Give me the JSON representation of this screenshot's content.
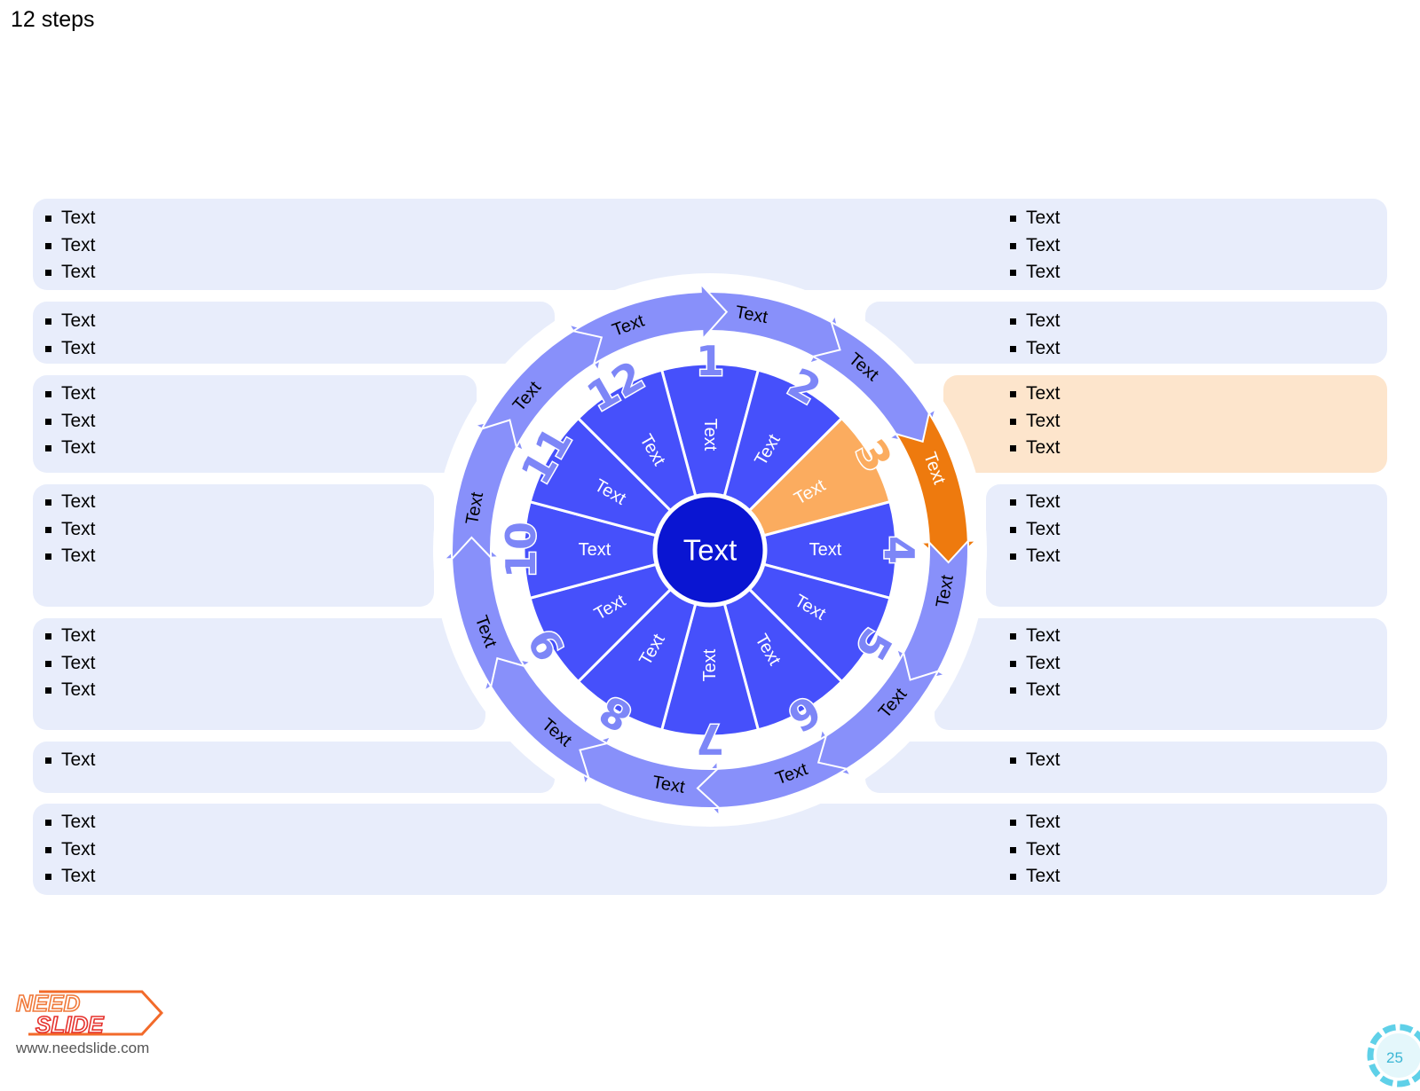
{
  "title": "12 steps",
  "center_label": "Text",
  "colors": {
    "panel": "#e8edfb",
    "panel_highlight": "#fde5cc",
    "segment": "#4650fb",
    "segment_highlight": "#fbac5f",
    "ring_arrow": "#8890fa",
    "ring_arrow_highlight": "#ee7a0e",
    "center": "#0a15d2",
    "number": "#7d86f7"
  },
  "highlight_step": 3,
  "steps": [
    {
      "number": "1",
      "segment_label": "Text",
      "ring_label": "Text"
    },
    {
      "number": "2",
      "segment_label": "Text",
      "ring_label": "Text"
    },
    {
      "number": "3",
      "segment_label": "Text",
      "ring_label": "Text"
    },
    {
      "number": "4",
      "segment_label": "Text",
      "ring_label": "Text"
    },
    {
      "number": "5",
      "segment_label": "Text",
      "ring_label": "Text"
    },
    {
      "number": "6",
      "segment_label": "Text",
      "ring_label": "Text"
    },
    {
      "number": "7",
      "segment_label": "Text",
      "ring_label": "Text"
    },
    {
      "number": "8",
      "segment_label": "Text",
      "ring_label": "Text"
    },
    {
      "number": "9",
      "segment_label": "Text",
      "ring_label": "Text"
    },
    {
      "number": "10",
      "segment_label": "Text",
      "ring_label": "Text"
    },
    {
      "number": "11",
      "segment_label": "Text",
      "ring_label": "Text"
    },
    {
      "number": "12",
      "segment_label": "Text",
      "ring_label": "Text"
    }
  ],
  "left_rows": [
    {
      "items": [
        "Text",
        "Text",
        "Text"
      ]
    },
    {
      "items": [
        "Text",
        "Text"
      ]
    },
    {
      "items": [
        "Text",
        "Text",
        "Text"
      ]
    },
    {
      "items": [
        "Text",
        "Text",
        "Text"
      ]
    },
    {
      "items": [
        "Text",
        "Text",
        "Text"
      ]
    },
    {
      "items": [
        "Text"
      ]
    },
    {
      "items": [
        "Text",
        "Text",
        "Text"
      ]
    }
  ],
  "right_rows": [
    {
      "items": [
        "Text",
        "Text",
        "Text"
      ]
    },
    {
      "items": [
        "Text",
        "Text"
      ]
    },
    {
      "items": [
        "Text",
        "Text",
        "Text"
      ]
    },
    {
      "items": [
        "Text",
        "Text",
        "Text"
      ]
    },
    {
      "items": [
        "Text",
        "Text",
        "Text"
      ]
    },
    {
      "items": [
        "Text"
      ]
    },
    {
      "items": [
        "Text",
        "Text",
        "Text"
      ]
    }
  ],
  "logo": {
    "line1": "NEED",
    "line2": "SLIDE"
  },
  "website": "www.needslide.com",
  "page_number": "25"
}
